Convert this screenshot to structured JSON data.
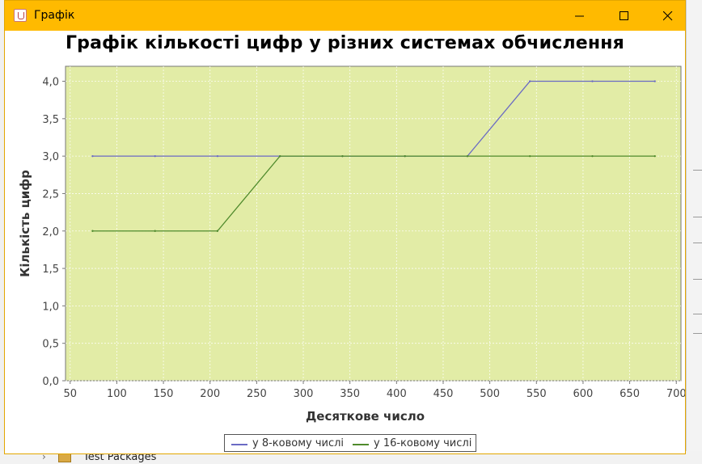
{
  "window": {
    "title": "Графік",
    "icon": "java-icon",
    "controls": [
      "minimize-icon",
      "maximize-icon",
      "close-icon"
    ],
    "titlebar_color": "#ffba00"
  },
  "background": {
    "test_packages_label": "Test Packages"
  },
  "chart_data": {
    "type": "line",
    "title": "Графік кількості цифр у різних системах обчислення",
    "xlabel": "Десяткове число",
    "ylabel": "Кількість цифр",
    "xlim": [
      45,
      705
    ],
    "ylim": [
      0,
      4.2
    ],
    "x_ticks": [
      50,
      100,
      150,
      200,
      250,
      300,
      350,
      400,
      450,
      500,
      550,
      600,
      650,
      700
    ],
    "y_ticks": [
      0,
      0.5,
      1.0,
      1.5,
      2.0,
      2.5,
      3.0,
      3.5,
      4.0
    ],
    "y_tick_labels": [
      "0,0",
      "0,5",
      "1,0",
      "1,5",
      "2,0",
      "2,5",
      "3,0",
      "3,5",
      "4,0"
    ],
    "plot_background": "#e2eca6",
    "grid": true,
    "legend_position": "bottom",
    "series": [
      {
        "name": "у 8-ковому числі",
        "color": "#6a6ac4",
        "x": [
          74,
          141,
          208,
          275,
          342,
          409,
          476,
          543,
          610,
          677
        ],
        "y": [
          3,
          3,
          3,
          3,
          3,
          3,
          3,
          4,
          4,
          4
        ]
      },
      {
        "name": "у 16-ковому числі",
        "color": "#4f8a2c",
        "x": [
          74,
          141,
          208,
          275,
          342,
          409,
          476,
          543,
          610,
          677
        ],
        "y": [
          2,
          2,
          2,
          3,
          3,
          3,
          3,
          3,
          3,
          3
        ]
      }
    ]
  }
}
